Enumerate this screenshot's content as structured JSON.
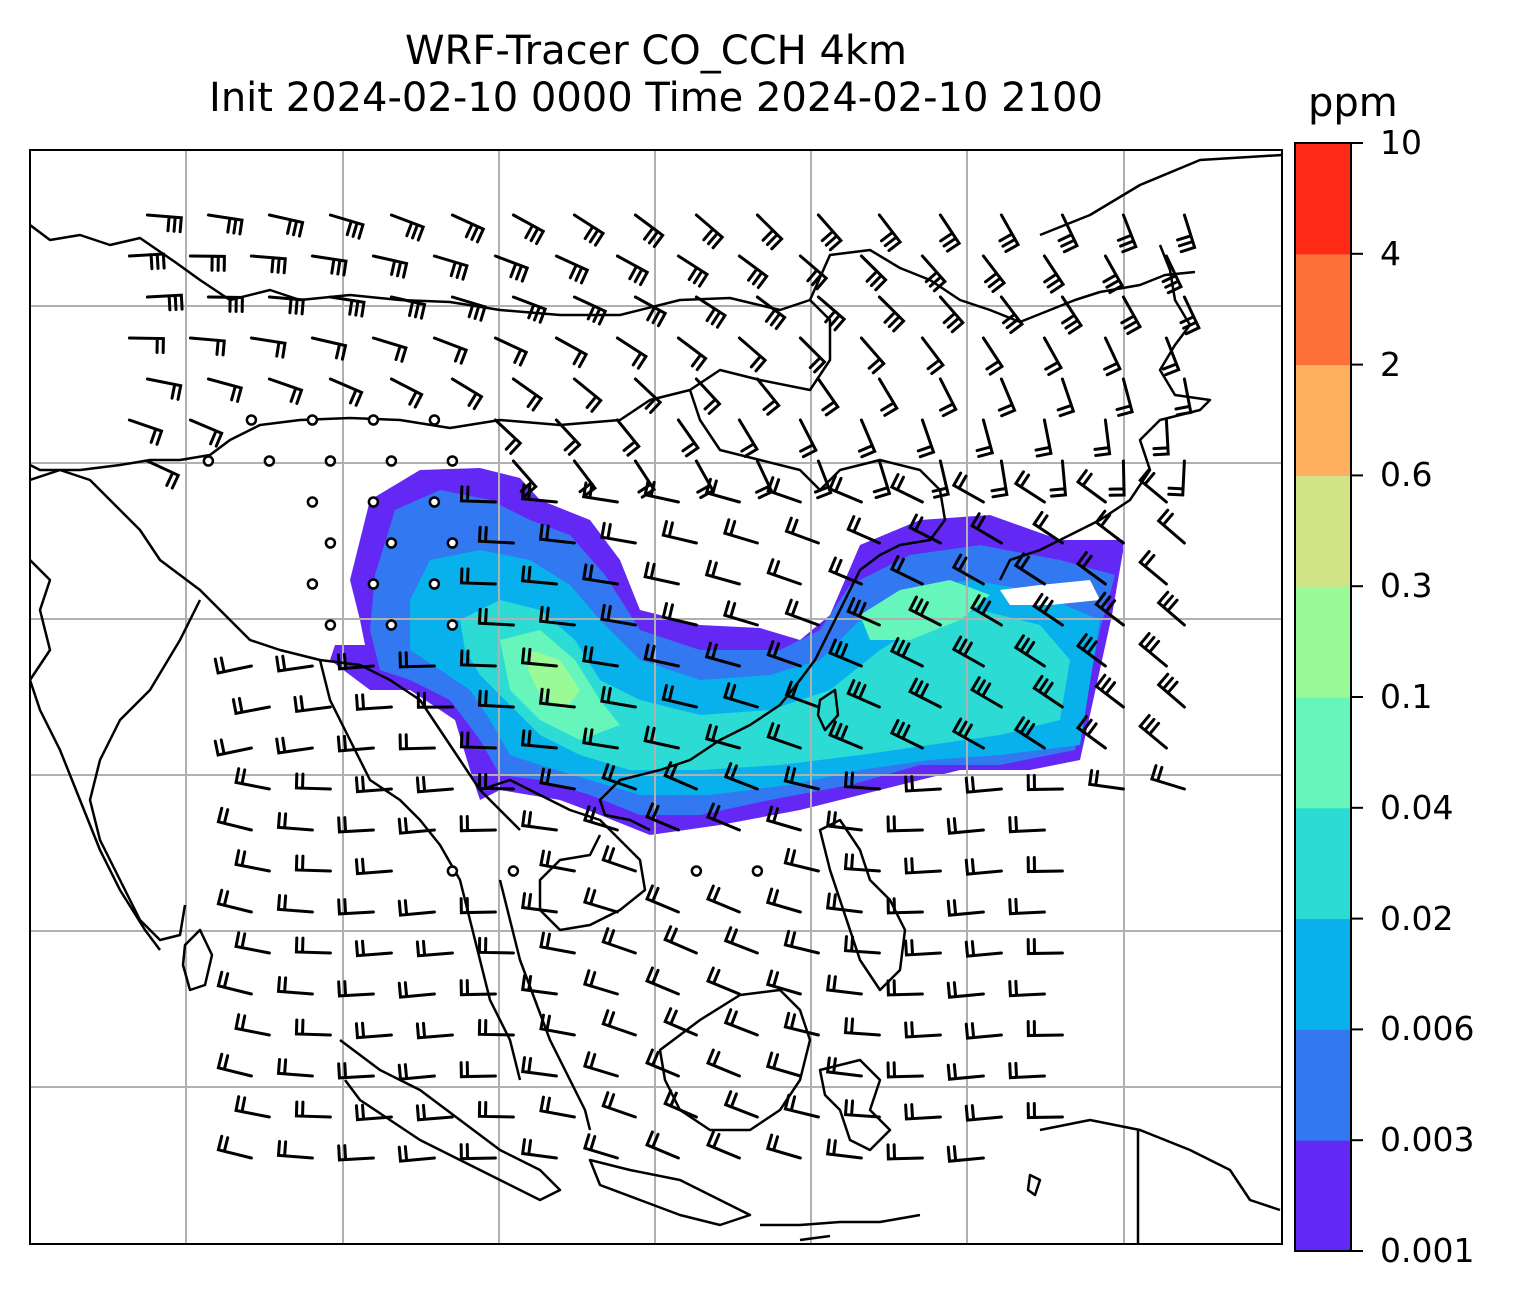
{
  "title": {
    "line1": "WRF-Tracer CO_CCH 4km",
    "line2": "Init 2024-02-10 0000 Time 2024-02-10 2100"
  },
  "colorbar": {
    "unit": "ppm",
    "levels": [
      "0.001",
      "0.003",
      "0.006",
      "0.02",
      "0.04",
      "0.1",
      "0.3",
      "0.6",
      "2",
      "4",
      "10"
    ],
    "colors": [
      "#6428f4",
      "#3278f0",
      "#08b0ec",
      "#2cdcd4",
      "#66f6bc",
      "#9afa96",
      "#d2e286",
      "#ffb05e",
      "#ff7038",
      "#ff2a16"
    ]
  },
  "map": {
    "gridline_color": "#b0b0b0",
    "coast_color": "#000000",
    "barb_color": "#000000"
  }
}
